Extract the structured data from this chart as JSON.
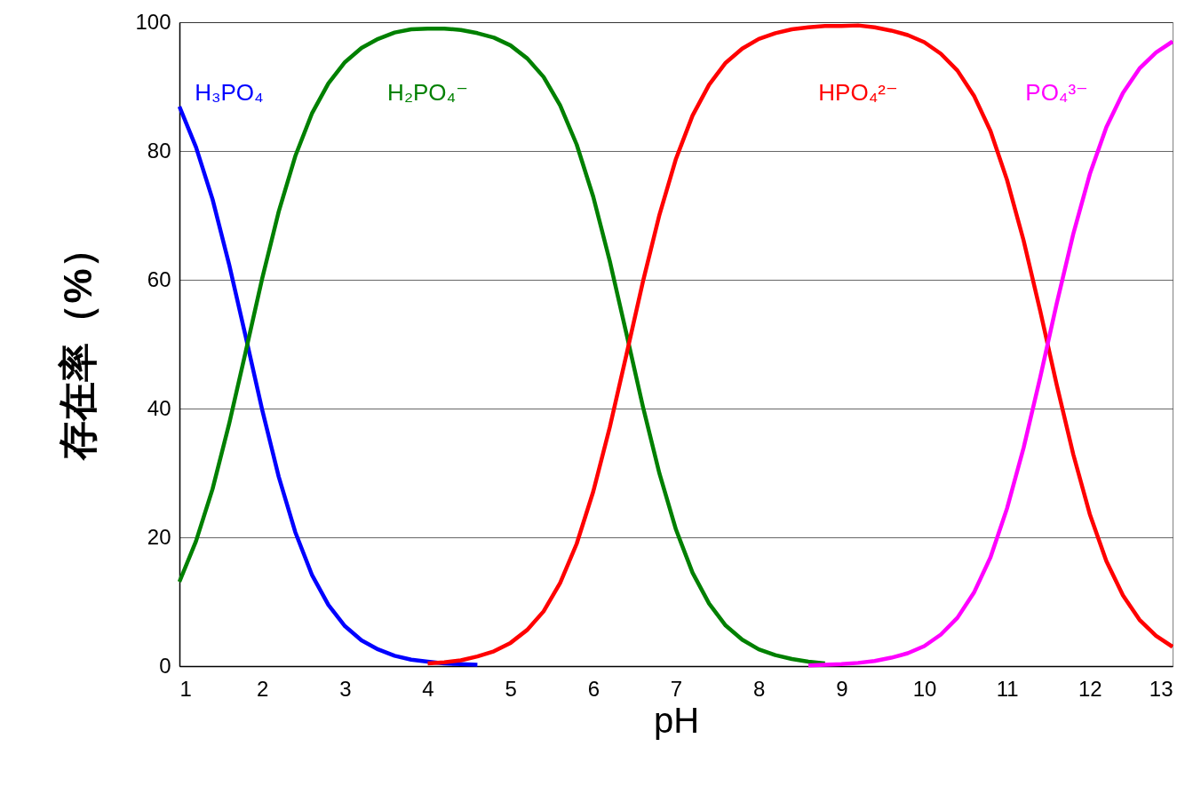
{
  "chart_data": {
    "type": "line",
    "xlabel": "pH",
    "ylabel": "存在率（%）",
    "xlim": [
      1,
      13
    ],
    "xticks": [
      1,
      2,
      3,
      4,
      5,
      6,
      7,
      8,
      9,
      10,
      11,
      12,
      13
    ],
    "ylim": [
      0,
      100
    ],
    "yticks": [
      0,
      20,
      40,
      60,
      80,
      100
    ],
    "grid": "y",
    "legend": false,
    "marker": "none",
    "line_style": "solid",
    "series": [
      {
        "name": "H₃PO₄",
        "color": "#0000ff",
        "x": [
          1.0,
          1.2,
          1.4,
          1.6,
          1.8,
          2.0,
          2.2,
          2.4,
          2.6,
          2.8,
          3.0,
          3.2,
          3.4,
          3.6,
          3.8,
          4.0,
          4.2,
          4.4,
          4.6
        ],
        "values": [
          86.9,
          80.6,
          72.5,
          62.4,
          51.2,
          39.8,
          29.4,
          20.8,
          14.2,
          9.5,
          6.2,
          4.0,
          2.6,
          1.6,
          1.0,
          0.7,
          0.4,
          0.3,
          0.2
        ]
      },
      {
        "name": "H₂PO₄⁻",
        "color": "#008000",
        "x": [
          1.0,
          1.2,
          1.4,
          1.6,
          1.8,
          2.0,
          2.2,
          2.4,
          2.6,
          2.8,
          3.0,
          3.2,
          3.4,
          3.6,
          3.8,
          4.0,
          4.2,
          4.4,
          4.6,
          4.8,
          5.0,
          5.2,
          5.4,
          5.6,
          5.8,
          6.0,
          6.2,
          6.4,
          6.6,
          6.8,
          7.0,
          7.2,
          7.4,
          7.6,
          7.8,
          8.0,
          8.2,
          8.4,
          8.6,
          8.8
        ],
        "values": [
          13.1,
          19.4,
          27.5,
          37.6,
          48.8,
          60.2,
          70.6,
          79.2,
          85.8,
          90.5,
          93.8,
          96.0,
          97.4,
          98.4,
          98.9,
          99.0,
          99.0,
          98.8,
          98.3,
          97.6,
          96.4,
          94.4,
          91.5,
          87.1,
          81.0,
          72.9,
          62.9,
          51.7,
          40.3,
          29.9,
          21.2,
          14.5,
          9.7,
          6.3,
          4.1,
          2.6,
          1.7,
          1.1,
          0.7,
          0.4
        ]
      },
      {
        "name": "HPO₄²⁻",
        "color": "#ff0000",
        "x": [
          4.0,
          4.2,
          4.4,
          4.6,
          4.8,
          5.0,
          5.2,
          5.4,
          5.6,
          5.8,
          6.0,
          6.2,
          6.4,
          6.6,
          6.8,
          7.0,
          7.2,
          7.4,
          7.6,
          7.8,
          8.0,
          8.2,
          8.4,
          8.6,
          8.8,
          9.0,
          9.2,
          9.4,
          9.6,
          9.8,
          10.0,
          10.2,
          10.4,
          10.6,
          10.8,
          11.0,
          11.2,
          11.4,
          11.6,
          11.8,
          12.0,
          12.2,
          12.4,
          12.6,
          12.8,
          13.0
        ],
        "values": [
          0.4,
          0.6,
          0.9,
          1.5,
          2.3,
          3.6,
          5.6,
          8.5,
          12.9,
          19.0,
          27.1,
          37.1,
          48.3,
          59.7,
          70.1,
          78.8,
          85.5,
          90.3,
          93.7,
          95.9,
          97.4,
          98.3,
          98.9,
          99.2,
          99.4,
          99.4,
          99.5,
          99.2,
          98.7,
          98.0,
          96.9,
          95.1,
          92.5,
          88.6,
          83.1,
          75.5,
          66.1,
          55.2,
          43.7,
          32.9,
          23.6,
          16.3,
          11.0,
          7.2,
          4.7,
          3.0
        ]
      },
      {
        "name": "PO₄³⁻",
        "color": "#ff00ff",
        "x": [
          8.6,
          8.8,
          9.0,
          9.2,
          9.4,
          9.6,
          9.8,
          10.0,
          10.2,
          10.4,
          10.6,
          10.8,
          11.0,
          11.2,
          11.4,
          11.6,
          11.8,
          12.0,
          12.2,
          12.4,
          12.6,
          12.8,
          13.0
        ],
        "values": [
          0.1,
          0.2,
          0.3,
          0.5,
          0.8,
          1.3,
          2.0,
          3.1,
          4.9,
          7.5,
          11.4,
          16.9,
          24.5,
          33.9,
          44.8,
          56.3,
          67.1,
          76.4,
          83.7,
          89.0,
          92.8,
          95.3,
          97.0
        ]
      }
    ]
  }
}
